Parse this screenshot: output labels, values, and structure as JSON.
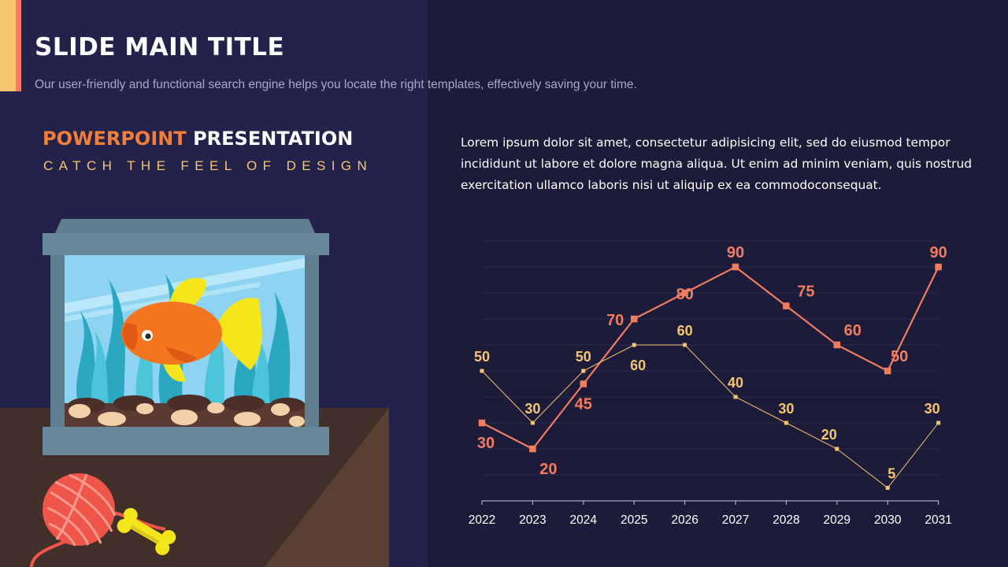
{
  "header": {
    "title": "SLIDE MAIN TITLE",
    "subtitle": "Our user-friendly and functional search engine helps you locate the right templates, effectively saving your time."
  },
  "left": {
    "heading_highlight": "POWERPOINT",
    "heading_rest": " PRESENTATION",
    "tagline": "CATCH THE FEEL OF DESIGN"
  },
  "body": {
    "text": "Lorem ipsum dolor sit amet, consectetur adipisicing elit, sed do eiusmod tempor incididunt ut labore et dolore magna aliqua. Ut enim ad minim veniam, quis nostrud exercitation ullamco laboris nisi ut aliquip ex ea commodoconsequat."
  },
  "colors": {
    "background": "#1c1b3a",
    "panel": "#23224a",
    "accent_yellow": "#f6c66f",
    "accent_coral": "#f27c5f",
    "accent_orange": "#f27e3a"
  },
  "illustration": {
    "icons": [
      "aquarium-icon",
      "goldfish-icon",
      "yarn-ball-icon",
      "bone-toy-icon"
    ]
  },
  "chart_data": {
    "type": "line",
    "x": [
      "2022",
      "2023",
      "2024",
      "2025",
      "2026",
      "2027",
      "2028",
      "2029",
      "2030",
      "2031"
    ],
    "ylim": [
      0,
      100
    ],
    "grid": true,
    "series": [
      {
        "values": [
          30,
          20,
          45,
          70,
          80,
          90,
          75,
          60,
          50,
          90
        ],
        "color": "#f27c5f"
      },
      {
        "values": [
          50,
          30,
          50,
          60,
          60,
          40,
          30,
          20,
          5,
          30
        ],
        "color": "#f6c66f"
      }
    ]
  }
}
